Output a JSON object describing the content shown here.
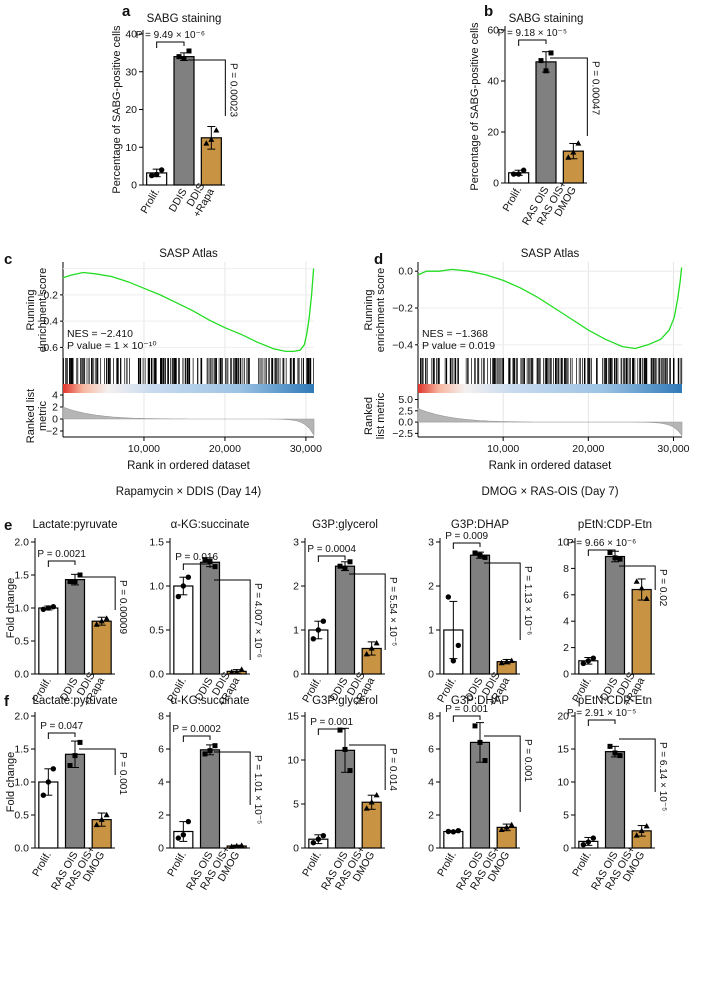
{
  "colors": {
    "prolif": "#ffffff",
    "treated": "#808080",
    "rescue": "#c89443",
    "gsea_line": "#22dd22",
    "bar_stroke": "#000000"
  },
  "panels": {
    "a": {
      "letter": "a",
      "title": "SABG staining",
      "ylabel": "Percentage of SABG-positive cells",
      "annotations": [
        "P = 9.49 × 10⁻⁶",
        "P = 0.00023"
      ]
    },
    "b": {
      "letter": "b",
      "title": "SABG staining",
      "ylabel": "Percentage of SABG-positive cells",
      "annotations": [
        "P = 9.18 × 10⁻⁵",
        "P = 0.00047"
      ]
    },
    "c": {
      "letter": "c",
      "title": "SASP Atlas",
      "ylabel1": "Running",
      "ylabel2": "enrichment score",
      "rlabel1": "Ranked list",
      "rlabel2": "metric",
      "nes": "NES = −2.410",
      "pval": "P value = 1 × 10⁻¹⁰",
      "xlabel": "Rank in ordered dataset",
      "caption": "Rapamycin × DDIS (Day 14)"
    },
    "d": {
      "letter": "d",
      "title": "SASP Atlas",
      "ylabel1": "Running",
      "ylabel2": "enrichment score",
      "rlabel1": "Ranked",
      "rlabel2": "list metric",
      "nes": "NES = −1.368",
      "pval": "P value = 0.019",
      "xlabel": "Rank in ordered dataset",
      "caption": "DMOG × RAS-OIS (Day 7)"
    },
    "e": {
      "letter": "e",
      "ylabel": "Fold change",
      "charts": [
        {
          "title": "Lactate:pyruvate",
          "annotations": [
            "P = 0.0021",
            "P = 0.00009"
          ]
        },
        {
          "title": "α-KG:succinate",
          "annotations": [
            "P = 0.016",
            "P = 4.007 × 10⁻⁶"
          ]
        },
        {
          "title": "G3P:glycerol",
          "annotations": [
            "P = 0.0004",
            "P = 5.54 × 10⁻⁵"
          ]
        },
        {
          "title": "G3P:DHAP",
          "annotations": [
            "P = 0.009",
            "P = 1.13 × 10⁻⁶"
          ]
        },
        {
          "title": "pEtN:CDP-Etn",
          "annotations": [
            "P = 9.66 × 10⁻⁶",
            "P = 0.02"
          ]
        }
      ]
    },
    "f": {
      "letter": "f",
      "ylabel": "Fold change",
      "charts": [
        {
          "title": "Lactate:pyruvate",
          "annotations": [
            "P = 0.047",
            "P = 0.001"
          ]
        },
        {
          "title": "α-KG:succinate",
          "annotations": [
            "P = 0.0002",
            "P = 1.01 × 10⁻⁵"
          ]
        },
        {
          "title": "G3P:glycerol",
          "annotations": [
            "P = 0.001",
            "P = 0.014"
          ]
        },
        {
          "title": "G3P:DHAP",
          "annotations": [
            "P = 0.001",
            "P = 0.001"
          ]
        },
        {
          "title": "pEtN:CDP-Etn",
          "annotations": [
            "P = 2.91 × 10⁻⁵",
            "P = 6.14 × 10⁻⁵"
          ]
        }
      ]
    }
  },
  "chart_data": [
    {
      "id": "a",
      "type": "bar",
      "title": "SABG staining",
      "ylabel": "Percentage of SABG-positive cells",
      "categories": [
        "Prolif.",
        "DDIS",
        "DDIS\n+Rapa"
      ],
      "values": [
        3.2,
        34,
        12.5
      ],
      "errors": [
        1,
        1,
        3
      ],
      "points": [
        [
          2.5,
          4,
          2.8
        ],
        [
          34,
          35.5,
          33.5
        ],
        [
          11,
          14.5,
          12
        ]
      ],
      "ylim": [
        0,
        40
      ],
      "yticks": [
        0,
        10,
        20,
        30,
        40
      ]
    },
    {
      "id": "b",
      "type": "bar",
      "title": "SABG staining",
      "ylabel": "Percentage of SABG-positive cells",
      "categories": [
        "Prolif.",
        "RAS OIS",
        "RAS OIS+\nDMOG"
      ],
      "values": [
        4,
        47.5,
        12.5
      ],
      "errors": [
        1,
        4,
        3
      ],
      "points": [
        [
          3.5,
          5,
          3.5
        ],
        [
          48,
          51,
          44
        ],
        [
          10,
          15.5,
          12
        ]
      ],
      "ylim": [
        0,
        60
      ],
      "yticks": [
        0,
        20,
        40,
        60
      ]
    },
    {
      "id": "c",
      "type": "line",
      "title": "SASP Atlas",
      "xlabel": "Rank in ordered dataset",
      "ylabel": "Running enrichment score",
      "xlim": [
        0,
        31000
      ],
      "xticks": [
        10000,
        20000,
        30000
      ],
      "ylim": [
        -0.65,
        0.05
      ],
      "yticks": [
        -0.6,
        -0.4,
        -0.2
      ],
      "x": [
        0,
        1000,
        2500,
        4000,
        6000,
        8000,
        10000,
        12000,
        14000,
        16000,
        18000,
        20000,
        22000,
        24000,
        26000,
        27500,
        28500,
        29300,
        29800,
        30100,
        30400,
        30700,
        30950
      ],
      "y": [
        -0.07,
        -0.05,
        -0.03,
        -0.04,
        -0.06,
        -0.1,
        -0.15,
        -0.2,
        -0.26,
        -0.32,
        -0.39,
        -0.45,
        -0.5,
        -0.56,
        -0.61,
        -0.63,
        -0.63,
        -0.62,
        -0.58,
        -0.5,
        -0.38,
        -0.2,
        0.0
      ],
      "ranked_ylim": [
        -3,
        4
      ],
      "ranked_yticks": [
        -2,
        0,
        2,
        4
      ]
    },
    {
      "id": "d",
      "type": "line",
      "title": "SASP Atlas",
      "xlabel": "Rank in ordered dataset",
      "ylabel": "Running enrichment score",
      "xlim": [
        0,
        31000
      ],
      "xticks": [
        10000,
        20000,
        30000
      ],
      "ylim": [
        -0.45,
        0.05
      ],
      "yticks": [
        -0.4,
        -0.2,
        0.0
      ],
      "x": [
        0,
        1000,
        2500,
        4000,
        6000,
        8000,
        10000,
        12000,
        14000,
        16000,
        18000,
        20000,
        22000,
        24000,
        25500,
        27000,
        28500,
        29500,
        30100,
        30500,
        30800,
        30950
      ],
      "y": [
        -0.02,
        0.0,
        0.0,
        0.01,
        0.0,
        -0.02,
        -0.05,
        -0.09,
        -0.14,
        -0.2,
        -0.26,
        -0.32,
        -0.37,
        -0.41,
        -0.42,
        -0.4,
        -0.37,
        -0.32,
        -0.25,
        -0.15,
        -0.05,
        0.02
      ],
      "ranked_ylim": [
        -3.3,
        6
      ],
      "ranked_yticks": [
        -2.5,
        0.0,
        2.5,
        5.0
      ]
    },
    {
      "id": "e1",
      "type": "bar",
      "categories": [
        "Prolif.",
        "DDIS",
        "DDIS\n+Rapa"
      ],
      "values": [
        1.0,
        1.43,
        0.8
      ],
      "errors": [
        0.03,
        0.08,
        0.06
      ],
      "points": [
        [
          0.98,
          1.02,
          1.0
        ],
        [
          1.4,
          1.5,
          1.4
        ],
        [
          0.75,
          0.84,
          0.8
        ]
      ],
      "ylim": [
        0,
        2
      ],
      "yticks": [
        0,
        0.5,
        1.0,
        1.5,
        2.0
      ]
    },
    {
      "id": "e2",
      "type": "bar",
      "categories": [
        "Prolif.",
        "DDIS",
        "DDIS\n+Rapa"
      ],
      "values": [
        1.0,
        1.27,
        0.03
      ],
      "errors": [
        0.1,
        0.05,
        0.02
      ],
      "points": [
        [
          0.88,
          1.1,
          1.0
        ],
        [
          1.3,
          1.22,
          1.28
        ],
        [
          0.02,
          0.05,
          0.02
        ]
      ],
      "ylim": [
        0,
        1.5
      ],
      "yticks": [
        0,
        0.5,
        1.0,
        1.5
      ]
    },
    {
      "id": "e3",
      "type": "bar",
      "categories": [
        "Prolif.",
        "DDIS",
        "DDIS\n+Rapa"
      ],
      "values": [
        1.0,
        2.45,
        0.58
      ],
      "errors": [
        0.2,
        0.1,
        0.15
      ],
      "points": [
        [
          0.8,
          1.2,
          1.0
        ],
        [
          2.45,
          2.55,
          2.4
        ],
        [
          0.45,
          0.7,
          0.58
        ]
      ],
      "ylim": [
        0,
        3
      ],
      "yticks": [
        0,
        1,
        2,
        3
      ]
    },
    {
      "id": "e4",
      "type": "bar",
      "categories": [
        "Prolif.",
        "DDIS",
        "DDIS\n+Rapa"
      ],
      "values": [
        1.0,
        2.7,
        0.28
      ],
      "errors": [
        0.65,
        0.07,
        0.05
      ],
      "points": [
        [
          1.75,
          0.65,
          0.3
        ],
        [
          2.75,
          2.65,
          2.7
        ],
        [
          0.25,
          0.3,
          0.28
        ]
      ],
      "ylim": [
        0,
        3
      ],
      "yticks": [
        0,
        1,
        2,
        3
      ]
    },
    {
      "id": "e5",
      "type": "bar",
      "categories": [
        "Prolif.",
        "DDIS",
        "DDIS\n+Rapa"
      ],
      "values": [
        1.0,
        8.9,
        6.4
      ],
      "errors": [
        0.25,
        0.4,
        0.8
      ],
      "points": [
        [
          0.8,
          1.2,
          1.0
        ],
        [
          9.2,
          8.7,
          8.8
        ],
        [
          7.0,
          5.7,
          6.5
        ]
      ],
      "ylim": [
        0,
        10
      ],
      "yticks": [
        0,
        2,
        4,
        6,
        8,
        10
      ]
    },
    {
      "id": "f1",
      "type": "bar",
      "categories": [
        "Prolif.",
        "RAS OIS",
        "RAS OIS+\nDMOG"
      ],
      "values": [
        1.0,
        1.42,
        0.43
      ],
      "errors": [
        0.2,
        0.2,
        0.1
      ],
      "points": [
        [
          0.8,
          1.2,
          1.0
        ],
        [
          1.25,
          1.6,
          1.4
        ],
        [
          0.35,
          0.5,
          0.43
        ]
      ],
      "ylim": [
        0,
        2
      ],
      "yticks": [
        0,
        0.5,
        1.0,
        1.5,
        2.0
      ]
    },
    {
      "id": "f2",
      "type": "bar",
      "categories": [
        "Prolif.",
        "RAS OIS",
        "RAS OIS+\nDMOG"
      ],
      "values": [
        1.0,
        5.95,
        0.12
      ],
      "errors": [
        0.6,
        0.3,
        0.05
      ],
      "points": [
        [
          0.6,
          1.6,
          0.8
        ],
        [
          5.7,
          6.2,
          5.9
        ],
        [
          0.08,
          0.15,
          0.12
        ]
      ],
      "ylim": [
        0,
        8
      ],
      "yticks": [
        0,
        2,
        4,
        6,
        8
      ]
    },
    {
      "id": "f3",
      "type": "bar",
      "categories": [
        "Prolif.",
        "RAS OIS",
        "RAS OIS+\nDMOG"
      ],
      "values": [
        1.0,
        11.1,
        5.2
      ],
      "errors": [
        0.5,
        2.5,
        0.8
      ],
      "points": [
        [
          0.6,
          1.4,
          1.0
        ],
        [
          13.4,
          8.8,
          11.2
        ],
        [
          4.5,
          6.0,
          5.2
        ]
      ],
      "ylim": [
        0,
        15
      ],
      "yticks": [
        0,
        5,
        10,
        15
      ]
    },
    {
      "id": "f4",
      "type": "bar",
      "categories": [
        "Prolif.",
        "RAS OIS",
        "RAS OIS+\nDMOG"
      ],
      "values": [
        1.0,
        6.4,
        1.25
      ],
      "errors": [
        0.05,
        1.2,
        0.2
      ],
      "points": [
        [
          1.0,
          1.05,
          0.98
        ],
        [
          7.4,
          5.3,
          6.4
        ],
        [
          1.1,
          1.4,
          1.25
        ]
      ],
      "ylim": [
        0,
        8
      ],
      "yticks": [
        0,
        2,
        4,
        6,
        8
      ]
    },
    {
      "id": "f5",
      "type": "bar",
      "categories": [
        "Prolif.",
        "RAS OIS",
        "RAS OIS+\nDMOG"
      ],
      "values": [
        1.0,
        14.6,
        2.6
      ],
      "errors": [
        0.6,
        0.8,
        0.8
      ],
      "points": [
        [
          0.5,
          1.5,
          0.9
        ],
        [
          15.4,
          14.0,
          14.4
        ],
        [
          1.9,
          3.3,
          2.6
        ]
      ],
      "ylim": [
        0,
        20
      ],
      "yticks": [
        0,
        5,
        10,
        15,
        20
      ]
    }
  ]
}
